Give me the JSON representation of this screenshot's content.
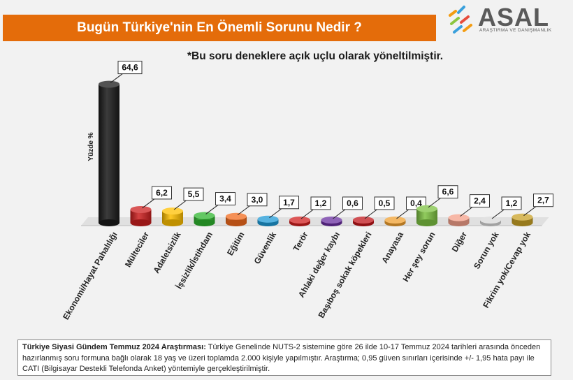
{
  "header": {
    "title": "Bugün Türkiye'nin En Önemli Sorunu Nedir ?"
  },
  "logo": {
    "name": "ASAL",
    "subtitle": "ARAŞTIRMA VE DANIŞMANLIK",
    "mark_colors": [
      "#f39c12",
      "#3aa0dc",
      "#8cc63f",
      "#e74c3c"
    ]
  },
  "note": "*Bu soru deneklere açık uçlu olarak yöneltilmiştir.",
  "chart_data": {
    "type": "bar",
    "title": "",
    "ylabel": "Yüzde  %",
    "xlabel": "",
    "ylim": [
      0,
      70
    ],
    "grid": false,
    "legend": "none",
    "categories": [
      "Ekonomi/Hayat Pahalılığı",
      "Mülteciler",
      "Adaletsizlik",
      "İşsizlik/İstihdam",
      "Eğitim",
      "Güvenlik",
      "Terör",
      "Ahlaki değer kaybı",
      "Başıboş sokak köpekleri",
      "Anayasa",
      "Her şey sorun",
      "Diğer",
      "Sorun yok",
      "Fikrim yok/Cevap yok"
    ],
    "values": [
      64.6,
      6.2,
      5.5,
      3.4,
      3.0,
      1.7,
      1.2,
      0.6,
      0.5,
      0.4,
      6.6,
      2.4,
      1.2,
      2.7
    ],
    "value_labels": [
      "64,6",
      "6,2",
      "5,5",
      "3,4",
      "3,0",
      "1,7",
      "1,2",
      "0,6",
      "0,5",
      "0,4",
      "6,6",
      "2,4",
      "1,2",
      "2,7"
    ],
    "colors": [
      "#1a1a1a",
      "#cc1f1f",
      "#ffc000",
      "#2fb52f",
      "#f26b1d",
      "#1f9ad6",
      "#d01f1f",
      "#6a2fa0",
      "#c0161b",
      "#f0a030",
      "#7dc242",
      "#f4a08a",
      "#d8d8d8",
      "#c9a227"
    ]
  },
  "footer": {
    "bold": "Türkiye Siyasi Gündem Temmuz 2024 Araştırması:",
    "text": " Türkiye Genelinde NUTS-2 sistemine göre 26 ilde 10-17 Temmuz 2024 tarihleri arasında önceden hazırlanmış soru formuna bağlı olarak 18 yaş ve üzeri toplamda 2.000 kişiyle yapılmıştır. Araştırma; 0,95 güven sınırları içerisinde +/- 1,95 hata payı ile CATI (Bilgisayar Destekli Telefonda Anket) yöntemiyle gerçekleştirilmiştir."
  }
}
